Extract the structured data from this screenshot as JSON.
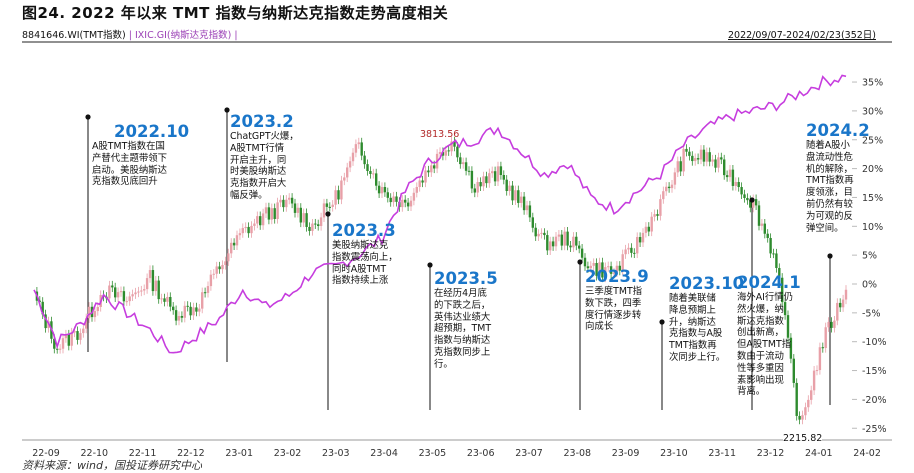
{
  "figure": {
    "title": "图24. 2022 年以来 TMT 指数与纳斯达克指数走势高度相关",
    "legend_series1": "8841646.WI(TMT指数)",
    "legend_sep": " | ",
    "legend_series2": "IXIC.GI(纳斯达克指数)",
    "legend_tail": " |",
    "date_range": "2022/09/07-2024/02/23(352日)",
    "source": "资料来源：wind，国投证券研究中心"
  },
  "annotations": [
    {
      "year": "2022.10",
      "text": "A股TMT指数在国\n产替代主题带领下\n启动。美股纳斯达\n克指数见底回升"
    },
    {
      "year": "2023.2",
      "text": "ChatGPT火爆，\nA股TMT行情\n开启主升，同\n时美股纳斯达\n克指数开启大\n幅反弹。"
    },
    {
      "year": "2023.3",
      "text": "美股纳斯达克\n指数震荡向上，\n同时A股TMT\n指数持续上涨"
    },
    {
      "year": "2023.5",
      "text": "在经历4月底\n的下跌之后，\n英伟达业绩大\n超预期，TMT\n指数与纳斯达\n克指数同步上\n行。"
    },
    {
      "year": "2023.9",
      "text": "三季度TMT指\n数下跌，四季\n度行情逐步转\n向成长"
    },
    {
      "year": "2023.10",
      "text": "随着美联储\n降息预期上\n升，纳斯达\n克指数与A股\nTMT指数再\n次同步上行。"
    },
    {
      "year": "2024.1",
      "text": "海外AI行情仍\n然火爆，纳\n斯达克指数\n创出新高，\n但A股TMT指\n数由于流动\n性等多重因\n素影响出现\n背离。"
    },
    {
      "year": "2024.2",
      "text": "随着A股小\n盘流动性危\n机的解除，\nTMT指数再\n度领涨，目\n前仍然有较\n为可观的反\n弹空间。"
    }
  ],
  "chart_data": {
    "type": "line",
    "title": "图24. 2022 年以来 TMT 指数与纳斯达克指数走势高度相关",
    "x_ticks": [
      "22-09",
      "22-10",
      "22-11",
      "22-12",
      "23-01",
      "23-02",
      "23-03",
      "23-04",
      "23-05",
      "23-06",
      "23-07",
      "23-08",
      "23-09",
      "23-10",
      "23-11",
      "23-12",
      "24-01",
      "24-02"
    ],
    "y_ticks": [
      "35%",
      "30%",
      "25%",
      "20%",
      "15%",
      "10%",
      "5%",
      "0%",
      "-5%",
      "-10%",
      "-15%",
      "-20%",
      "-25%"
    ],
    "ylim": [
      -27,
      37
    ],
    "series": [
      {
        "name": "8841646.WI(TMT指数)",
        "style": "candlestick",
        "x": [
          "22-09",
          "22-10",
          "22-10",
          "22-11",
          "22-11",
          "22-12",
          "22-12",
          "23-01",
          "23-01",
          "23-02",
          "23-02",
          "23-03",
          "23-03",
          "23-04",
          "23-04",
          "23-05",
          "23-05",
          "23-06",
          "23-06",
          "23-07",
          "23-07",
          "23-08",
          "23-08",
          "23-09",
          "23-09",
          "23-10",
          "23-10",
          "23-11",
          "23-11",
          "23-12",
          "23-12",
          "24-01",
          "24-01",
          "24-02",
          "24-02",
          "24-02"
        ],
        "values": [
          -2,
          -11,
          -8,
          -1,
          -3,
          1,
          -5,
          -4,
          3,
          9,
          12,
          14,
          10,
          15,
          24,
          16,
          14,
          20,
          25,
          17,
          19,
          14,
          7,
          8,
          3,
          2,
          7,
          14,
          22,
          22,
          19,
          14,
          4,
          -25,
          -10,
          -1
        ]
      },
      {
        "name": "IXIC.GI(纳斯达克指数)",
        "style": "line",
        "x": [
          "22-09",
          "22-10",
          "22-10",
          "22-11",
          "22-11",
          "22-12",
          "22-12",
          "23-01",
          "23-01",
          "23-02",
          "23-02",
          "23-03",
          "23-03",
          "23-04",
          "23-04",
          "23-05",
          "23-05",
          "23-06",
          "23-06",
          "23-07",
          "23-07",
          "23-08",
          "23-08",
          "23-09",
          "23-09",
          "23-10",
          "23-10",
          "23-11",
          "23-11",
          "23-12",
          "23-12",
          "24-01",
          "24-01",
          "24-02",
          "24-02",
          "24-02"
        ],
        "values": [
          -1,
          -10,
          -7,
          -2,
          -5,
          -8,
          -12,
          -9,
          -6,
          -1,
          -4,
          -2,
          2,
          3,
          5,
          8,
          16,
          21,
          24,
          25,
          27,
          23,
          19,
          21,
          15,
          13,
          16,
          19,
          24,
          27,
          29,
          30,
          31,
          33,
          35,
          36
        ]
      }
    ],
    "data_labels": [
      {
        "text": "3813.56",
        "series": "8841646.WI(TMT指数)",
        "position": "peak"
      },
      {
        "text": "2215.82",
        "series": "8841646.WI(TMT指数)",
        "position": "trough"
      }
    ],
    "colors": {
      "tmt_up": "#e8a0a8",
      "tmt_down": "#2e8b2e",
      "ixic": "#c63dde",
      "annotation_year": "#1a76c9",
      "grid": "#d9d9d9"
    },
    "grid": false,
    "legend_position": "top-left"
  }
}
